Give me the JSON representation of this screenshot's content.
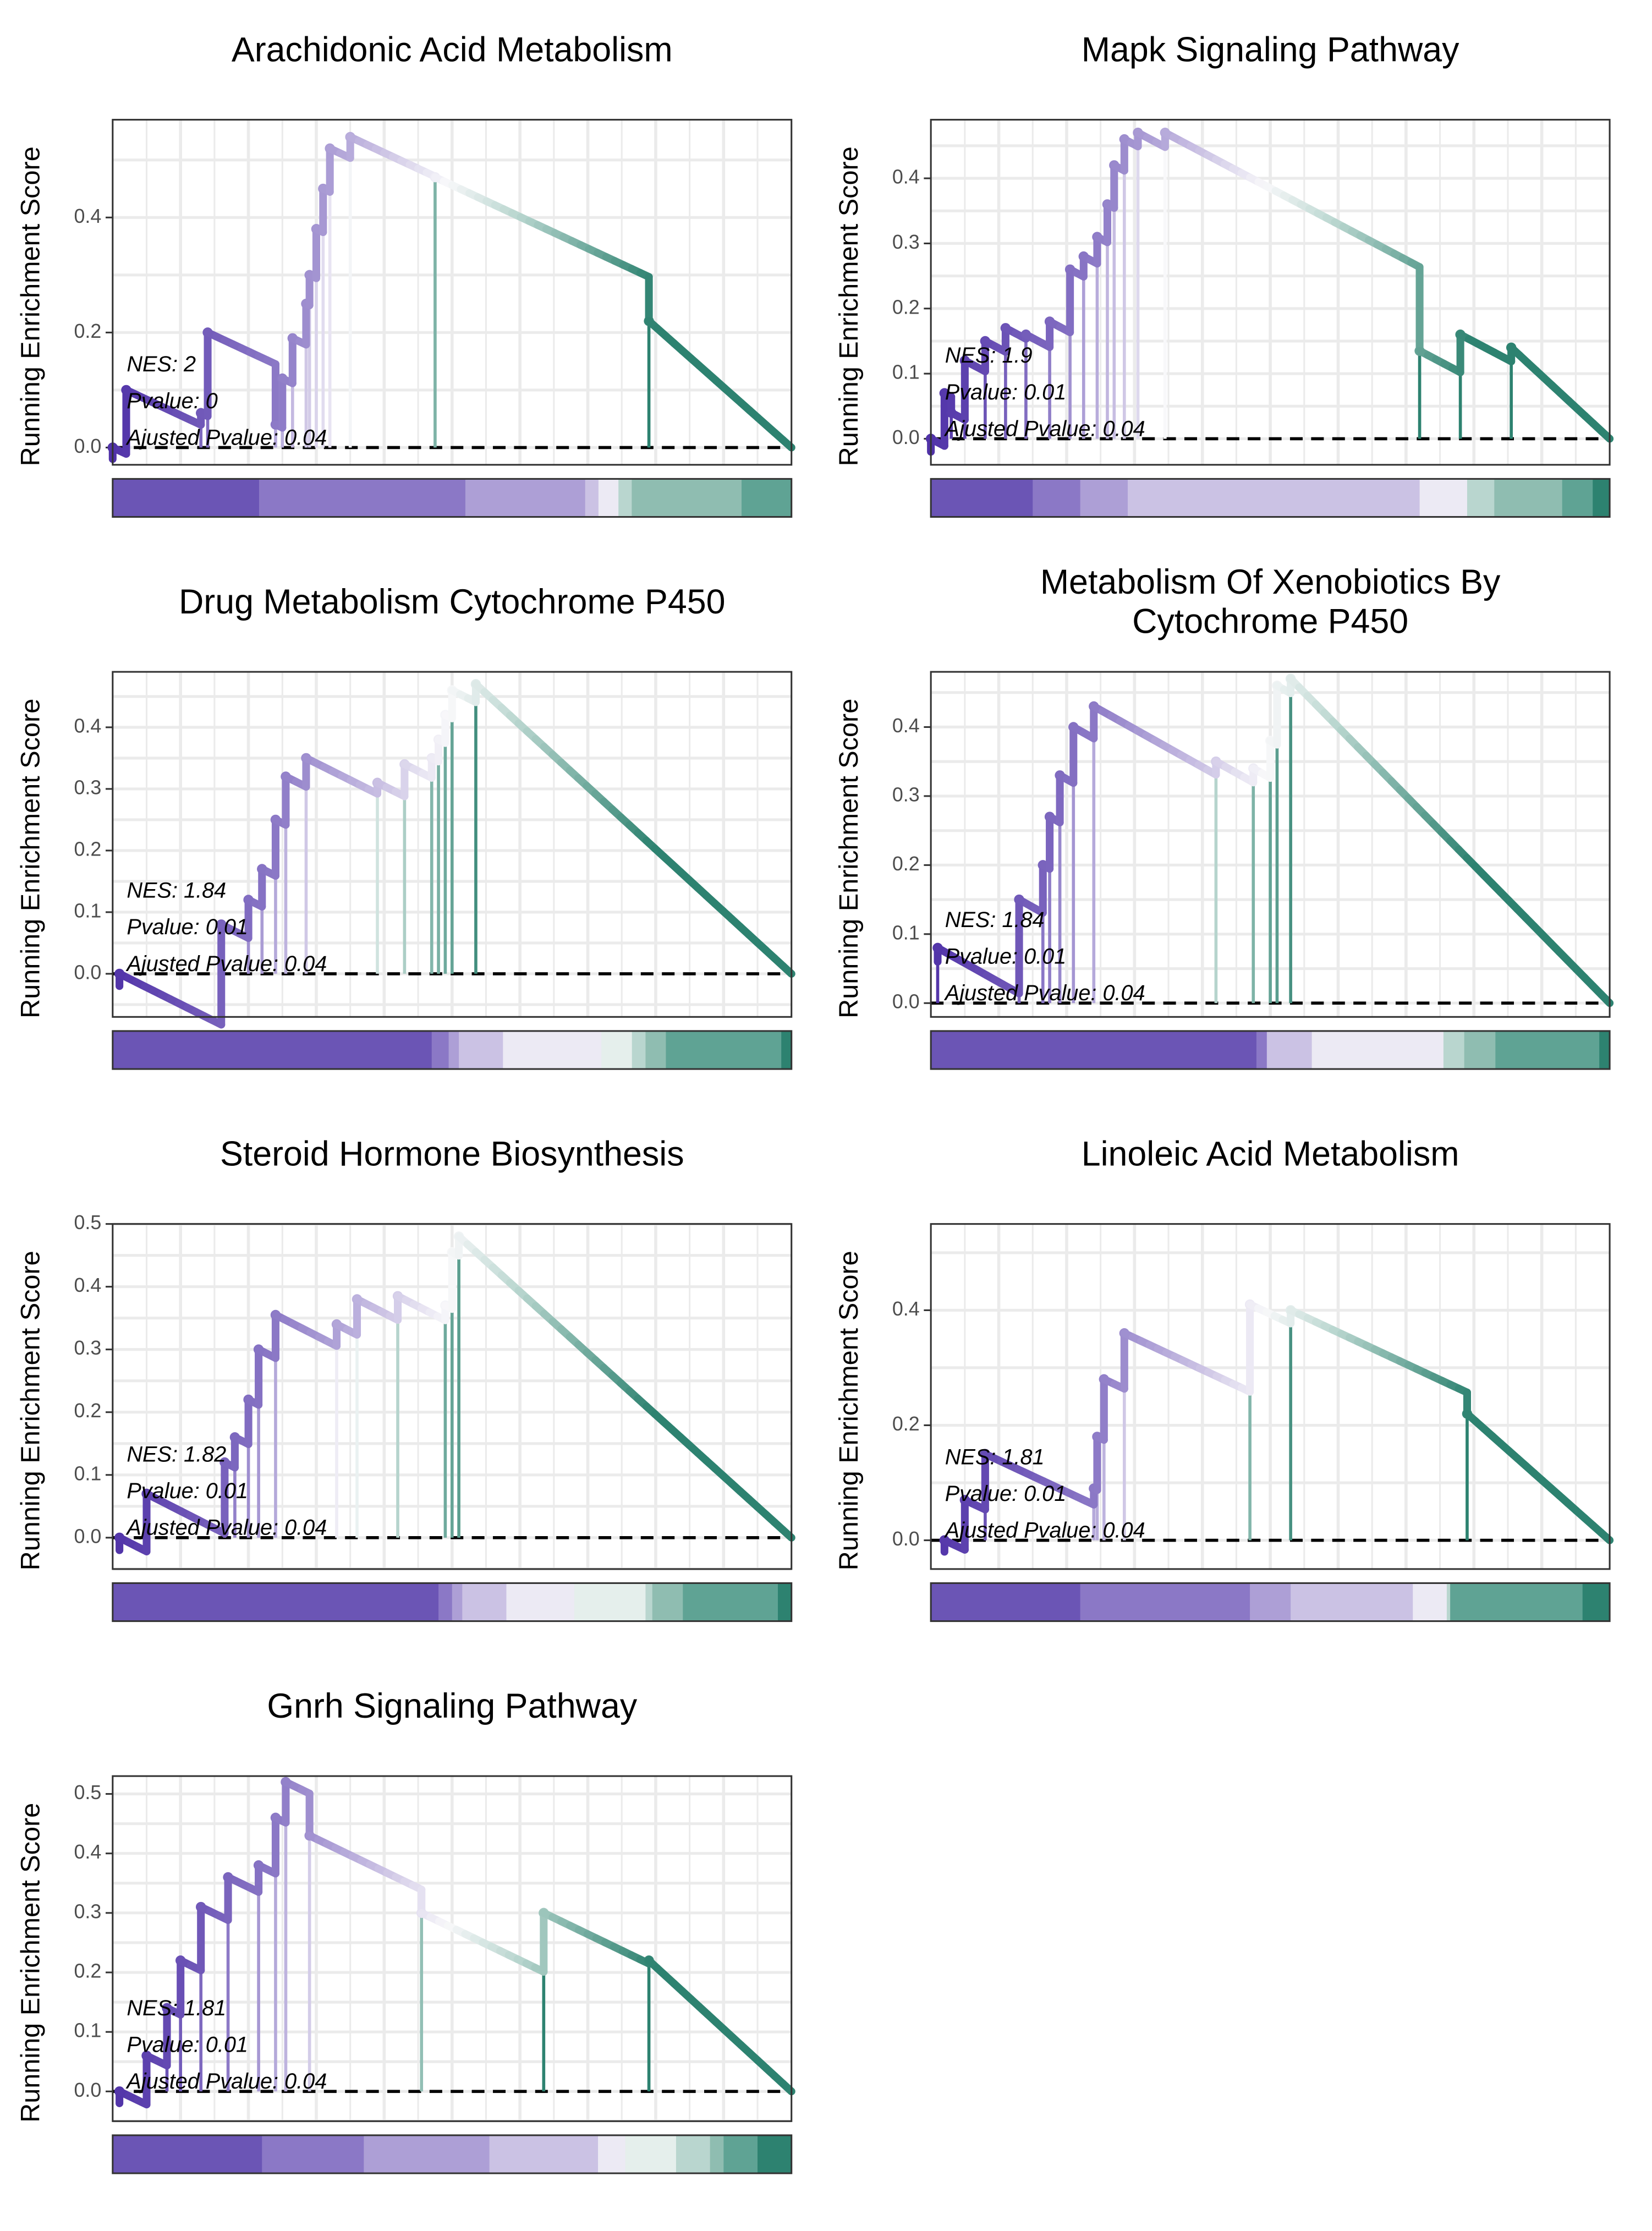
{
  "y_axis_label": "Running Enrichment Score",
  "colors": {
    "purple_dark": "#5032a8",
    "purple": "#6b55b5",
    "purple_mid": "#8b78c6",
    "purple_light": "#ad9fd6",
    "lavender": "#cbc2e4",
    "pale": "#eceaf4",
    "mint_pale": "#e5efec",
    "mint": "#b9d6cf",
    "teal_light": "#8fbdb1",
    "teal": "#5fa394",
    "teal_dark": "#2d8270",
    "zero_line": "#000000",
    "grid": "#ebebeb"
  },
  "chart_data": [
    {
      "type": "line",
      "title": "Arachidonic Acid Metabolism",
      "ylabel": "Running Enrichment Score",
      "ylim": [
        -0.03,
        0.57
      ],
      "yticks": [
        0.0,
        0.2,
        0.4
      ],
      "ytick_labels": [
        "0.0",
        "0.2",
        "0.4"
      ],
      "grid": true,
      "stats": [
        "NES: 2",
        "Pvalue: 0",
        "Ajusted Pvalue: 0.04"
      ],
      "hits": [
        0,
        0.02,
        0.13,
        0.14,
        0.24,
        0.25,
        0.265,
        0.285,
        0.29,
        0.3,
        0.31,
        0.32,
        0.35,
        0.475,
        0.79
      ],
      "es": [
        0.0,
        0.1,
        0.06,
        0.2,
        0.04,
        0.12,
        0.19,
        0.25,
        0.3,
        0.38,
        0.45,
        0.52,
        0.54,
        0.47,
        0.22
      ],
      "bar_segments": [
        {
          "w": 0.22,
          "c": "purple"
        },
        {
          "w": 0.31,
          "c": "purple_mid"
        },
        {
          "w": 0.18,
          "c": "purple_light"
        },
        {
          "w": 0.02,
          "c": "lavender"
        },
        {
          "w": 0.03,
          "c": "pale"
        },
        {
          "w": 0.02,
          "c": "mint"
        },
        {
          "w": 0.165,
          "c": "teal_light"
        },
        {
          "w": 0.075,
          "c": "teal"
        }
      ]
    },
    {
      "type": "line",
      "title": "Mapk Signaling Pathway",
      "ylabel": "Running Enrichment Score",
      "ylim": [
        -0.04,
        0.49
      ],
      "yticks": [
        0.0,
        0.1,
        0.2,
        0.3,
        0.4
      ],
      "ytick_labels": [
        "0.0",
        "0.1",
        "0.2",
        "0.3",
        "0.4"
      ],
      "grid": true,
      "stats": [
        "NES: 1.9",
        "Pvalue: 0.01",
        "Ajusted Pvalue: 0.04"
      ],
      "hits": [
        0,
        0.02,
        0.03,
        0.05,
        0.08,
        0.11,
        0.14,
        0.175,
        0.205,
        0.225,
        0.245,
        0.26,
        0.27,
        0.285,
        0.305,
        0.345,
        0.72,
        0.78,
        0.855
      ],
      "es": [
        0.0,
        0.07,
        0.04,
        0.12,
        0.15,
        0.17,
        0.16,
        0.18,
        0.26,
        0.28,
        0.31,
        0.36,
        0.42,
        0.46,
        0.47,
        0.47,
        0.135,
        0.16,
        0.14
      ],
      "bar_segments": [
        {
          "w": 0.15,
          "c": "purple"
        },
        {
          "w": 0.07,
          "c": "purple_mid"
        },
        {
          "w": 0.07,
          "c": "purple_light"
        },
        {
          "w": 0.43,
          "c": "lavender"
        },
        {
          "w": 0.07,
          "c": "pale"
        },
        {
          "w": 0.04,
          "c": "mint"
        },
        {
          "w": 0.1,
          "c": "teal_light"
        },
        {
          "w": 0.045,
          "c": "teal"
        },
        {
          "w": 0.025,
          "c": "teal_dark"
        }
      ]
    },
    {
      "type": "line",
      "title": "Drug Metabolism Cytochrome P450",
      "ylabel": "Running Enrichment Score",
      "ylim": [
        -0.07,
        0.49
      ],
      "yticks": [
        0.0,
        0.1,
        0.2,
        0.3,
        0.4
      ],
      "ytick_labels": [
        "0.0",
        "0.1",
        "0.2",
        "0.3",
        "0.4"
      ],
      "grid": true,
      "stats": [
        "NES: 1.84",
        "Pvalue: 0.01",
        "Ajusted Pvalue: 0.04"
      ],
      "hits": [
        0.01,
        0.16,
        0.2,
        0.22,
        0.24,
        0.255,
        0.285,
        0.39,
        0.43,
        0.47,
        0.48,
        0.49,
        0.5,
        0.535
      ],
      "es": [
        0.0,
        0.08,
        0.12,
        0.17,
        0.25,
        0.32,
        0.35,
        0.31,
        0.34,
        0.35,
        0.38,
        0.42,
        0.46,
        0.47
      ],
      "bar_segments": [
        {
          "w": 0.47,
          "c": "purple"
        },
        {
          "w": 0.025,
          "c": "purple_mid"
        },
        {
          "w": 0.015,
          "c": "purple_light"
        },
        {
          "w": 0.065,
          "c": "lavender"
        },
        {
          "w": 0.145,
          "c": "pale"
        },
        {
          "w": 0.045,
          "c": "mint_pale"
        },
        {
          "w": 0.02,
          "c": "mint"
        },
        {
          "w": 0.03,
          "c": "teal_light"
        },
        {
          "w": 0.17,
          "c": "teal"
        },
        {
          "w": 0.015,
          "c": "teal_dark"
        }
      ]
    },
    {
      "type": "line",
      "title": "Metabolism Of Xenobiotics By Cytochrome P450",
      "ylabel": "Running Enrichment Score",
      "ylim": [
        -0.02,
        0.48
      ],
      "yticks": [
        0.0,
        0.1,
        0.2,
        0.3,
        0.4
      ],
      "ytick_labels": [
        "0.0",
        "0.1",
        "0.2",
        "0.3",
        "0.4"
      ],
      "grid": true,
      "stats": [
        "NES: 1.84",
        "Pvalue: 0.01",
        "Ajusted Pvalue: 0.04"
      ],
      "hits": [
        0.01,
        0.13,
        0.165,
        0.175,
        0.19,
        0.21,
        0.24,
        0.42,
        0.475,
        0.5,
        0.51,
        0.53
      ],
      "es": [
        0.08,
        0.15,
        0.2,
        0.27,
        0.33,
        0.4,
        0.43,
        0.35,
        0.34,
        0.38,
        0.46,
        0.47
      ],
      "bar_segments": [
        {
          "w": 0.47,
          "c": "purple"
        },
        {
          "w": 0.015,
          "c": "purple_mid"
        },
        {
          "w": 0.065,
          "c": "lavender"
        },
        {
          "w": 0.19,
          "c": "pale"
        },
        {
          "w": 0.03,
          "c": "mint"
        },
        {
          "w": 0.045,
          "c": "teal_light"
        },
        {
          "w": 0.15,
          "c": "teal"
        },
        {
          "w": 0.015,
          "c": "teal_dark"
        }
      ]
    },
    {
      "type": "line",
      "title": "Steroid Hormone Biosynthesis",
      "ylabel": "Running Enrichment Score",
      "ylim": [
        -0.05,
        0.5
      ],
      "yticks": [
        0.0,
        0.1,
        0.2,
        0.3,
        0.4,
        0.5
      ],
      "ytick_labels": [
        "0.0",
        "0.1",
        "0.2",
        "0.3",
        "0.4",
        "0.5"
      ],
      "grid": true,
      "stats": [
        "NES: 1.82",
        "Pvalue: 0.01",
        "Ajusted Pvalue: 0.04"
      ],
      "hits": [
        0.01,
        0.05,
        0.165,
        0.18,
        0.2,
        0.215,
        0.24,
        0.33,
        0.36,
        0.42,
        0.49,
        0.5,
        0.51
      ],
      "es": [
        0.0,
        0.07,
        0.12,
        0.16,
        0.22,
        0.3,
        0.355,
        0.34,
        0.38,
        0.385,
        0.37,
        0.455,
        0.48
      ],
      "bar_segments": [
        {
          "w": 0.48,
          "c": "purple"
        },
        {
          "w": 0.02,
          "c": "purple_mid"
        },
        {
          "w": 0.015,
          "c": "purple_light"
        },
        {
          "w": 0.065,
          "c": "lavender"
        },
        {
          "w": 0.1,
          "c": "pale"
        },
        {
          "w": 0.105,
          "c": "mint_pale"
        },
        {
          "w": 0.01,
          "c": "mint"
        },
        {
          "w": 0.045,
          "c": "teal_light"
        },
        {
          "w": 0.14,
          "c": "teal"
        },
        {
          "w": 0.02,
          "c": "teal_dark"
        }
      ]
    },
    {
      "type": "line",
      "title": "Linoleic Acid Metabolism",
      "ylabel": "Running Enrichment Score",
      "ylim": [
        -0.05,
        0.55
      ],
      "yticks": [
        0.0,
        0.2,
        0.4
      ],
      "ytick_labels": [
        "0.0",
        "0.2",
        "0.4"
      ],
      "grid": true,
      "stats": [
        "NES: 1.81",
        "Pvalue: 0.01",
        "Ajusted Pvalue: 0.04"
      ],
      "hits": [
        0.02,
        0.05,
        0.08,
        0.24,
        0.245,
        0.255,
        0.285,
        0.47,
        0.53,
        0.79
      ],
      "es": [
        0.0,
        0.07,
        0.15,
        0.09,
        0.18,
        0.28,
        0.36,
        0.41,
        0.4,
        0.22
      ],
      "bar_segments": [
        {
          "w": 0.22,
          "c": "purple"
        },
        {
          "w": 0.25,
          "c": "purple_mid"
        },
        {
          "w": 0.06,
          "c": "purple_light"
        },
        {
          "w": 0.18,
          "c": "lavender"
        },
        {
          "w": 0.05,
          "c": "pale"
        },
        {
          "w": 0.005,
          "c": "mint"
        },
        {
          "w": 0.195,
          "c": "teal"
        },
        {
          "w": 0.04,
          "c": "teal_dark"
        }
      ]
    },
    {
      "type": "line",
      "title": "Gnrh Signaling Pathway",
      "ylabel": "Running Enrichment Score",
      "ylim": [
        -0.05,
        0.53
      ],
      "yticks": [
        0.0,
        0.1,
        0.2,
        0.3,
        0.4,
        0.5
      ],
      "ytick_labels": [
        "0.0",
        "0.1",
        "0.2",
        "0.3",
        "0.4",
        "0.5"
      ],
      "grid": true,
      "stats": [
        "NES: 1.81",
        "Pvalue: 0.01",
        "Ajusted Pvalue: 0.04"
      ],
      "hits": [
        0.01,
        0.05,
        0.08,
        0.1,
        0.13,
        0.17,
        0.215,
        0.24,
        0.255,
        0.29,
        0.455,
        0.635,
        0.79
      ],
      "es": [
        0.0,
        0.06,
        0.14,
        0.22,
        0.31,
        0.36,
        0.38,
        0.46,
        0.52,
        0.43,
        0.3,
        0.3,
        0.22
      ],
      "bar_segments": [
        {
          "w": 0.22,
          "c": "purple"
        },
        {
          "w": 0.15,
          "c": "purple_mid"
        },
        {
          "w": 0.185,
          "c": "purple_light"
        },
        {
          "w": 0.16,
          "c": "lavender"
        },
        {
          "w": 0.04,
          "c": "pale"
        },
        {
          "w": 0.075,
          "c": "mint_pale"
        },
        {
          "w": 0.05,
          "c": "mint"
        },
        {
          "w": 0.02,
          "c": "teal_light"
        },
        {
          "w": 0.05,
          "c": "teal"
        },
        {
          "w": 0.05,
          "c": "teal_dark"
        }
      ]
    }
  ]
}
